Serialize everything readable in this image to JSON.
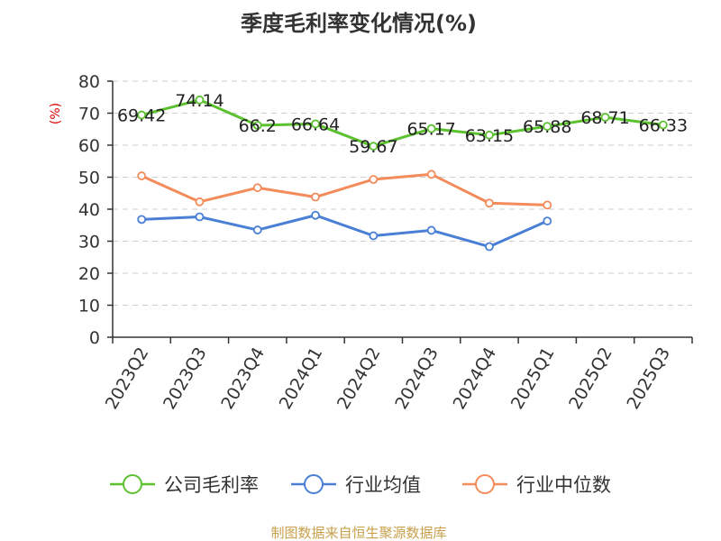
{
  "chart_data": {
    "type": "line",
    "title": "季度毛利率变化情况(%)",
    "ylabel": "(%)",
    "xlabel": "",
    "ylim": [
      0,
      80
    ],
    "yticks": [
      0,
      10,
      20,
      30,
      40,
      50,
      60,
      70,
      80
    ],
    "grid": true,
    "legend_position": "bottom",
    "categories": [
      "2023Q2",
      "2023Q3",
      "2023Q4",
      "2024Q1",
      "2024Q2",
      "2024Q3",
      "2024Q4",
      "2025Q1",
      "2025Q2",
      "2025Q3"
    ],
    "series": [
      {
        "name": "公司毛利率",
        "color": "#5cc12f",
        "show_labels": true,
        "values": [
          69.42,
          74.14,
          66.2,
          66.64,
          59.67,
          65.17,
          63.15,
          65.88,
          68.71,
          66.33
        ]
      },
      {
        "name": "行业均值",
        "color": "#4a7fd6",
        "show_labels": false,
        "values": [
          36.8,
          37.6,
          33.5,
          38.1,
          31.7,
          33.4,
          28.3,
          36.3,
          null,
          null
        ]
      },
      {
        "name": "行业中位数",
        "color": "#f48b5b",
        "show_labels": false,
        "values": [
          50.4,
          42.3,
          46.7,
          43.8,
          49.3,
          50.9,
          41.9,
          41.3,
          null,
          null
        ]
      }
    ]
  },
  "source_text": "制图数据来自恒生聚源数据库"
}
